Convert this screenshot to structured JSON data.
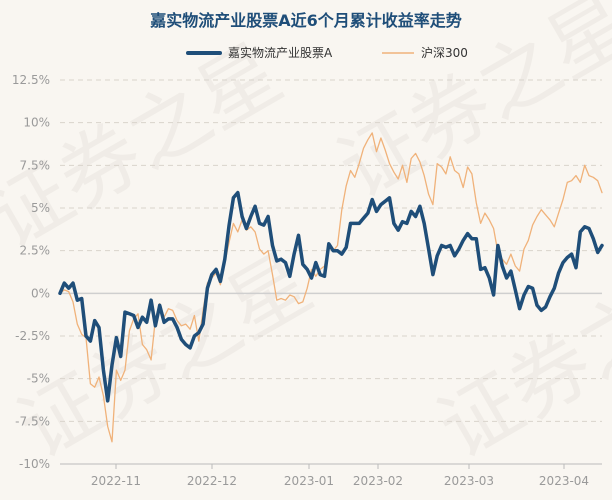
{
  "chart_data": {
    "type": "line",
    "title": "嘉实物流产业股票A近6个月累计收益率走势",
    "watermark": "证券之星",
    "x_tick_labels": [
      "2022-11",
      "2022-12",
      "2023-01",
      "2023-02",
      "2023-03",
      "2023-04"
    ],
    "ylim": [
      -10,
      12.5
    ],
    "y_ticks": [
      12.5,
      10,
      7.5,
      5,
      2.5,
      0,
      -2.5,
      -5,
      -7.5,
      -10
    ],
    "y_tick_labels": [
      "12.5%",
      "10%",
      "7.5%",
      "5%",
      "2.5%",
      "0%",
      "-2.5%",
      "-5%",
      "-7.5%",
      "-10%"
    ],
    "grid": true,
    "legend_position": "top-center",
    "colors": {
      "fund": "#1f4e79",
      "index": "#f0b27a",
      "zero_line": "#cfcfcf",
      "grid": "#d9d4cc"
    },
    "series": [
      {
        "name": "嘉实物流产业股票A",
        "values": [
          0.0,
          0.6,
          0.3,
          0.6,
          -0.4,
          -0.3,
          -2.5,
          -2.8,
          -1.6,
          -2.0,
          -4.5,
          -6.3,
          -4.2,
          -2.6,
          -3.7,
          -1.1,
          -1.2,
          -1.3,
          -2.0,
          -1.4,
          -1.7,
          -0.4,
          -1.9,
          -0.7,
          -1.7,
          -1.5,
          -1.5,
          -2.0,
          -2.7,
          -3.0,
          -3.2,
          -2.5,
          -2.3,
          -1.8,
          0.3,
          1.1,
          1.4,
          0.7,
          2.0,
          4.0,
          5.6,
          5.9,
          4.5,
          3.8,
          4.5,
          5.1,
          4.1,
          4.0,
          4.5,
          2.8,
          1.9,
          2.0,
          1.8,
          1.0,
          2.3,
          3.4,
          1.7,
          1.4,
          0.9,
          1.8,
          1.1,
          1.0,
          2.9,
          2.5,
          2.5,
          2.3,
          2.7,
          4.1,
          4.1,
          4.1,
          4.4,
          4.7,
          5.5,
          4.8,
          5.2,
          5.4,
          5.6,
          4.1,
          3.7,
          4.2,
          4.1,
          4.8,
          4.5,
          5.1,
          4.1,
          2.6,
          1.1,
          2.2,
          2.8,
          2.7,
          2.8,
          2.2,
          2.6,
          3.1,
          3.5,
          3.2,
          3.2,
          1.4,
          1.5,
          0.9,
          -0.1,
          2.8,
          1.6,
          0.9,
          1.3,
          0.2,
          -0.9,
          -0.1,
          0.4,
          0.3,
          -0.7,
          -1.0,
          -0.8,
          -0.2,
          0.3,
          1.2,
          1.8,
          2.1,
          2.3,
          1.5,
          3.6,
          3.9,
          3.8,
          3.2,
          2.4,
          2.8
        ]
      },
      {
        "name": "沪深300",
        "values": [
          0.0,
          0.2,
          0.1,
          -0.5,
          -1.8,
          -2.4,
          -2.6,
          -5.3,
          -5.5,
          -4.9,
          -6.0,
          -7.8,
          -8.7,
          -4.5,
          -5.1,
          -4.5,
          -2.2,
          -1.5,
          -1.2,
          -3.0,
          -3.3,
          -3.9,
          -1.5,
          -0.6,
          -1.4,
          -0.9,
          -1.0,
          -1.6,
          -1.9,
          -1.8,
          -2.1,
          -1.3,
          -2.8,
          -1.0,
          0.6,
          0.9,
          1.2,
          0.5,
          1.8,
          3.0,
          4.1,
          3.6,
          4.3,
          3.7,
          3.9,
          3.6,
          2.6,
          2.3,
          2.5,
          1.1,
          -0.4,
          -0.3,
          -0.4,
          -0.1,
          -0.2,
          -0.6,
          -0.5,
          0.3,
          1.4,
          1.0,
          1.4,
          1.6,
          2.8,
          2.5,
          2.8,
          4.9,
          6.3,
          7.2,
          6.8,
          7.6,
          8.5,
          9.0,
          9.4,
          8.3,
          9.1,
          8.4,
          7.6,
          7.1,
          6.7,
          7.5,
          6.5,
          7.9,
          8.2,
          7.7,
          6.9,
          5.8,
          5.2,
          7.6,
          7.4,
          7.0,
          8.0,
          7.2,
          7.0,
          6.2,
          7.4,
          7.0,
          5.3,
          4.1,
          4.7,
          4.3,
          3.8,
          2.4,
          2.0,
          1.7,
          2.3,
          1.6,
          1.3,
          2.6,
          3.1,
          4.0,
          4.5,
          4.9,
          4.6,
          4.3,
          3.9,
          4.7,
          5.5,
          6.5,
          6.6,
          6.9,
          6.5,
          7.5,
          6.9,
          6.8,
          6.6,
          5.9
        ]
      }
    ]
  }
}
